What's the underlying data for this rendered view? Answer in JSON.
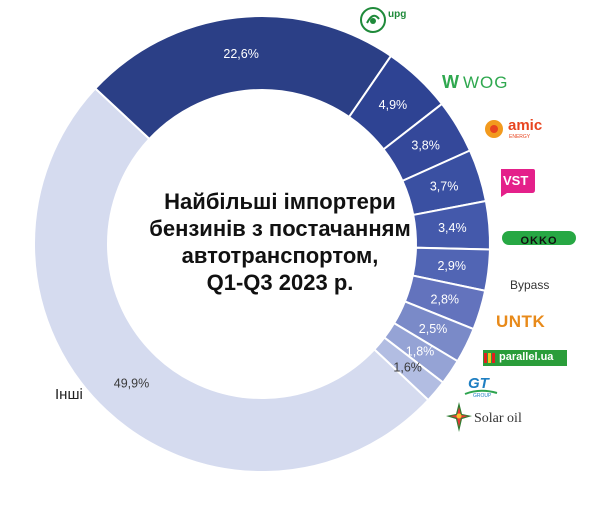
{
  "chart_data": {
    "type": "pie",
    "title": "Найбільші імпортери бензинів з постачанням автотранспортом, Q1-Q3 2023 р.",
    "slices": [
      {
        "name": "upg",
        "value": 22.6,
        "label": "22,6%",
        "color": "#2b3f86"
      },
      {
        "name": "WOG",
        "value": 4.9,
        "label": "4,9%",
        "color": "#2e4393"
      },
      {
        "name": "amic",
        "value": 3.8,
        "label": "3,8%",
        "color": "#34489a"
      },
      {
        "name": "VST",
        "value": 3.7,
        "label": "3,7%",
        "color": "#3a50a2"
      },
      {
        "name": "OKKO",
        "value": 3.4,
        "label": "3,4%",
        "color": "#4459ab"
      },
      {
        "name": "Bypass",
        "value": 2.9,
        "label": "2,9%",
        "color": "#5165b4"
      },
      {
        "name": "UNTK",
        "value": 2.8,
        "label": "2,8%",
        "color": "#6373bd"
      },
      {
        "name": "parallel.ua",
        "value": 2.5,
        "label": "2,5%",
        "color": "#7a8ac8"
      },
      {
        "name": "GT",
        "value": 1.8,
        "label": "1,8%",
        "color": "#95a3d5"
      },
      {
        "name": "Solar oil",
        "value": 1.6,
        "label": "1,6%",
        "color": "#b2bde2"
      },
      {
        "name": "Інші",
        "value": 49.9,
        "label": "49,9%",
        "color": "#d5dbef"
      }
    ]
  },
  "center_title_lines": [
    "Найбільші імпортери",
    "бензинів з постачанням",
    "автотранспортом,",
    "Q1-Q3 2023 р."
  ],
  "legend": {
    "other": "Інші",
    "upg": "upg",
    "wog": "WOG",
    "amic": "amic",
    "amic_sub": "ENERGY",
    "vst": "VST",
    "okko": "OKKO",
    "bypass": "Bypass",
    "untk": "UNTK",
    "parallel": "parallel.ua",
    "gt": "GT",
    "gt_sub": "GROUP",
    "solar": "Solar oil"
  }
}
